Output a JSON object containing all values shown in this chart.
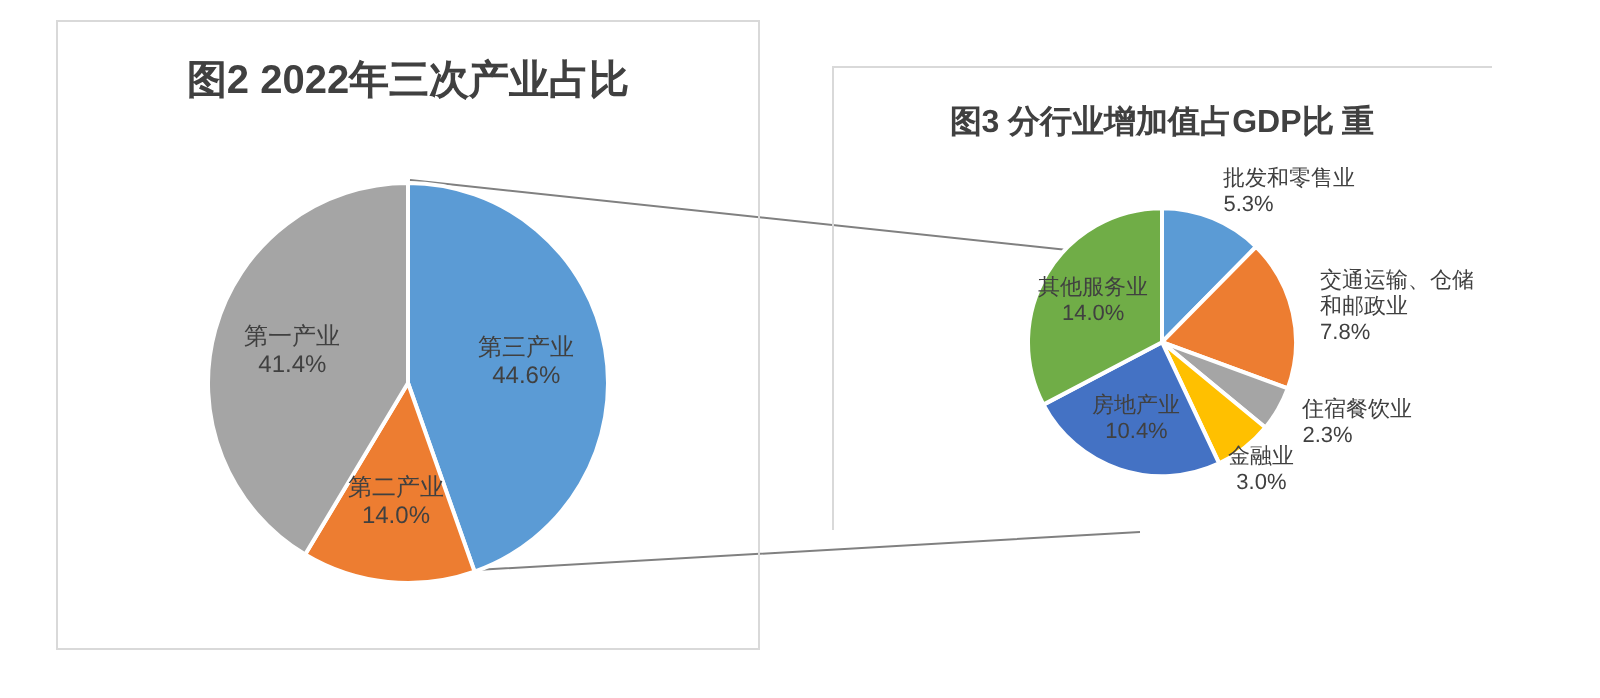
{
  "chart_data": [
    {
      "type": "pie",
      "title": "图2 2022年三次产业占比",
      "categories": [
        "第三产业",
        "第二产业",
        "第一产业"
      ],
      "values": [
        44.6,
        14.0,
        41.4
      ],
      "value_labels": [
        "44.6%",
        "14.0%",
        "41.4%"
      ],
      "colors": [
        "#5b9bd5",
        "#ed7d31",
        "#a5a5a5"
      ]
    },
    {
      "type": "pie",
      "title": "图3 分行业增加值占GDP比 重",
      "categories": [
        "批发和零售业",
        "交通运输、仓储和邮政业",
        "住宿餐饮业",
        "金融业",
        "房地产业",
        "其他服务业"
      ],
      "values": [
        5.3,
        7.8,
        2.3,
        3.0,
        10.4,
        14.0
      ],
      "value_labels": [
        "5.3%",
        "7.8%",
        "2.3%",
        "3.0%",
        "10.4%",
        "14.0%"
      ],
      "colors": [
        "#5b9bd5",
        "#ed7d31",
        "#a5a5a5",
        "#ffc000",
        "#4472c4",
        "#70ad47"
      ]
    }
  ]
}
